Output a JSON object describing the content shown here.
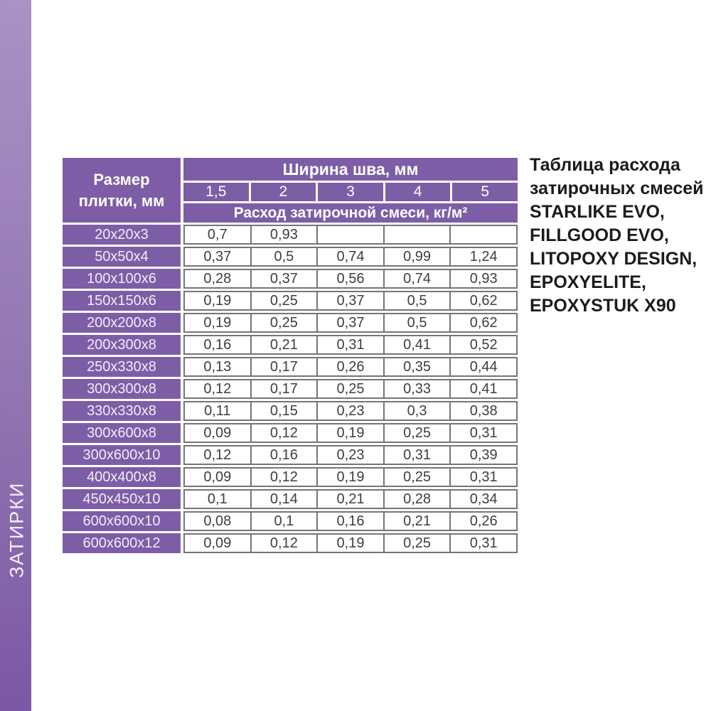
{
  "sidebar": {
    "vertical_label": "ЗАТИРКИ"
  },
  "colors": {
    "purple_cell": "#7d5ea6",
    "sidebar_gradient_top": "#aa92c5",
    "sidebar_gradient_bottom": "#7b58a5",
    "grid_border": "#757575",
    "data_text": "#3e3e3e"
  },
  "table": {
    "corner_header": "Размер плитки, мм",
    "group_header": "Ширина шва, мм",
    "subgroup_header": "Расход затирочной смеси, кг/м²",
    "columns": [
      "1,5",
      "2",
      "3",
      "4",
      "5"
    ],
    "rows": [
      {
        "label": "20x20x3",
        "values": [
          "0,7",
          "0,93",
          "",
          "",
          ""
        ]
      },
      {
        "label": "50x50x4",
        "values": [
          "0,37",
          "0,5",
          "0,74",
          "0,99",
          "1,24"
        ]
      },
      {
        "label": "100x100x6",
        "values": [
          "0,28",
          "0,37",
          "0,56",
          "0,74",
          "0,93"
        ]
      },
      {
        "label": "150x150x6",
        "values": [
          "0,19",
          "0,25",
          "0,37",
          "0,5",
          "0,62"
        ]
      },
      {
        "label": "200x200x8",
        "values": [
          "0,19",
          "0,25",
          "0,37",
          "0,5",
          "0,62"
        ]
      },
      {
        "label": "200x300x8",
        "values": [
          "0,16",
          "0,21",
          "0,31",
          "0,41",
          "0,52"
        ]
      },
      {
        "label": "250x330x8",
        "values": [
          "0,13",
          "0,17",
          "0,26",
          "0,35",
          "0,44"
        ]
      },
      {
        "label": "300x300x8",
        "values": [
          "0,12",
          "0,17",
          "0,25",
          "0,33",
          "0,41"
        ]
      },
      {
        "label": "330x330x8",
        "values": [
          "0,11",
          "0,15",
          "0,23",
          "0,3",
          "0,38"
        ]
      },
      {
        "label": "300x600x8",
        "values": [
          "0,09",
          "0,12",
          "0,19",
          "0,25",
          "0,31"
        ]
      },
      {
        "label": "300x600x10",
        "values": [
          "0,12",
          "0,16",
          "0,23",
          "0,31",
          "0,39"
        ]
      },
      {
        "label": "400x400x8",
        "values": [
          "0,09",
          "0,12",
          "0,19",
          "0,25",
          "0,31"
        ]
      },
      {
        "label": "450x450x10",
        "values": [
          "0,1",
          "0,14",
          "0,21",
          "0,28",
          "0,34"
        ]
      },
      {
        "label": "600x600x10",
        "values": [
          "0,08",
          "0,1",
          "0,16",
          "0,21",
          "0,26"
        ]
      },
      {
        "label": "600x600x12",
        "values": [
          "0,09",
          "0,12",
          "0,19",
          "0,25",
          "0,31"
        ]
      }
    ]
  },
  "caption": {
    "lines": [
      "Таблица расхода",
      "затирочных смесей",
      "STARLIKE EVO,",
      "FILLGOOD EVO,",
      "LITOPOXY DESIGN,",
      "EPOXYELITE,",
      "EPOXYSTUK X90"
    ]
  }
}
